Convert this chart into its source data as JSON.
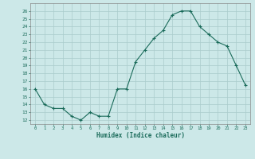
{
  "x": [
    0,
    1,
    2,
    3,
    4,
    5,
    6,
    7,
    8,
    9,
    10,
    11,
    12,
    13,
    14,
    15,
    16,
    17,
    18,
    19,
    20,
    21,
    22,
    23
  ],
  "y": [
    16,
    14,
    13.5,
    13.5,
    12.5,
    12,
    13,
    12.5,
    12.5,
    16,
    16,
    19.5,
    21,
    22.5,
    23.5,
    25.5,
    26,
    26,
    24,
    23,
    22,
    21.5,
    19,
    16.5
  ],
  "xlabel": "Humidex (Indice chaleur)",
  "ylim": [
    11.5,
    27
  ],
  "xlim": [
    -0.5,
    23.5
  ],
  "yticks": [
    12,
    13,
    14,
    15,
    16,
    17,
    18,
    19,
    20,
    21,
    22,
    23,
    24,
    25,
    26
  ],
  "xticks": [
    0,
    1,
    2,
    3,
    4,
    5,
    6,
    7,
    8,
    9,
    10,
    11,
    12,
    13,
    14,
    15,
    16,
    17,
    18,
    19,
    20,
    21,
    22,
    23
  ],
  "line_color": "#1a6b5a",
  "bg_color": "#cce8e8",
  "grid_color": "#aacccc",
  "title_color": "#1a6b5a"
}
